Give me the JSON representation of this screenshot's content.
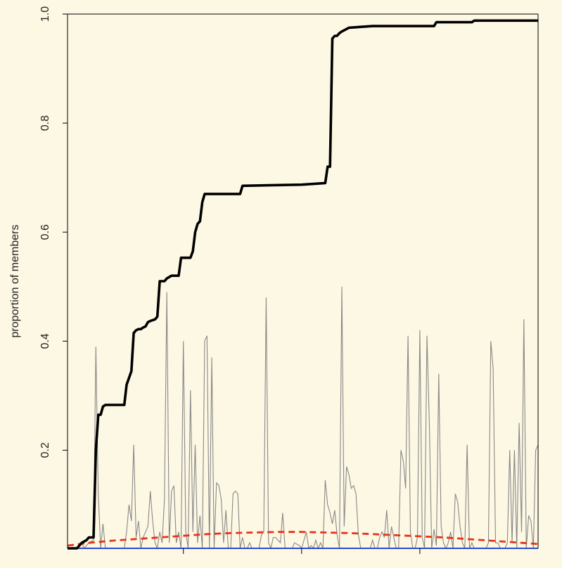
{
  "chart_data": {
    "type": "line",
    "title": "",
    "xlabel": "",
    "ylabel": "proportion of members",
    "xlim": [
      1,
      200
    ],
    "ylim": [
      0.02,
      1.0
    ],
    "yticks": [
      0.2,
      0.4,
      0.6,
      0.8,
      1.0
    ],
    "ytick_labels": [
      "0.2",
      "0.4",
      "0.6",
      "0.8",
      "1.0"
    ],
    "xticks": [
      50,
      100,
      150
    ],
    "grid": false,
    "legend": "none",
    "series": [
      {
        "style": "cumulative",
        "color": "#000000",
        "points": [
          [
            1,
            0.02
          ],
          [
            5,
            0.02
          ],
          [
            7,
            0.03
          ],
          [
            9,
            0.035
          ],
          [
            10,
            0.04
          ],
          [
            12,
            0.04
          ],
          [
            13,
            0.2
          ],
          [
            14,
            0.265
          ],
          [
            15,
            0.265
          ],
          [
            16,
            0.28
          ],
          [
            17,
            0.283
          ],
          [
            18,
            0.283
          ],
          [
            25,
            0.283
          ],
          [
            26,
            0.32
          ],
          [
            28,
            0.345
          ],
          [
            29,
            0.415
          ],
          [
            30,
            0.42
          ],
          [
            31,
            0.422
          ],
          [
            32,
            0.422
          ],
          [
            33,
            0.425
          ],
          [
            34,
            0.427
          ],
          [
            35,
            0.435
          ],
          [
            36,
            0.437
          ],
          [
            38,
            0.44
          ],
          [
            39,
            0.445
          ],
          [
            40,
            0.51
          ],
          [
            42,
            0.51
          ],
          [
            43,
            0.515
          ],
          [
            45,
            0.52
          ],
          [
            48,
            0.52
          ],
          [
            49,
            0.553
          ],
          [
            53,
            0.553
          ],
          [
            54,
            0.565
          ],
          [
            55,
            0.6
          ],
          [
            56,
            0.615
          ],
          [
            57,
            0.62
          ],
          [
            58,
            0.655
          ],
          [
            59,
            0.67
          ],
          [
            74,
            0.67
          ],
          [
            75,
            0.685
          ],
          [
            100,
            0.687
          ],
          [
            110,
            0.69
          ],
          [
            111,
            0.72
          ],
          [
            112,
            0.72
          ],
          [
            113,
            0.955
          ],
          [
            114,
            0.96
          ],
          [
            115,
            0.96
          ],
          [
            116,
            0.965
          ],
          [
            117,
            0.968
          ],
          [
            120,
            0.975
          ],
          [
            130,
            0.978
          ],
          [
            145,
            0.978
          ],
          [
            156,
            0.978
          ],
          [
            157,
            0.985
          ],
          [
            172,
            0.985
          ],
          [
            173,
            0.988
          ],
          [
            200,
            0.988
          ]
        ]
      },
      {
        "style": "per-step",
        "color": "#888888",
        "points": [
          [
            1,
            0.02
          ],
          [
            5,
            0.02
          ],
          [
            7,
            0.03
          ],
          [
            8,
            0.02
          ],
          [
            10,
            0.03
          ],
          [
            12,
            0.035
          ],
          [
            13,
            0.39
          ],
          [
            14,
            0.12
          ],
          [
            15,
            0.02
          ],
          [
            16,
            0.065
          ],
          [
            17,
            0.02
          ],
          [
            18,
            0.02
          ],
          [
            20,
            0.02
          ],
          [
            24,
            0.02
          ],
          [
            25,
            0.02
          ],
          [
            26,
            0.05
          ],
          [
            27,
            0.1
          ],
          [
            28,
            0.07
          ],
          [
            29,
            0.21
          ],
          [
            30,
            0.04
          ],
          [
            31,
            0.07
          ],
          [
            32,
            0.02
          ],
          [
            33,
            0.04
          ],
          [
            34,
            0.05
          ],
          [
            35,
            0.06
          ],
          [
            36,
            0.125
          ],
          [
            37,
            0.07
          ],
          [
            38,
            0.03
          ],
          [
            39,
            0.02
          ],
          [
            40,
            0.05
          ],
          [
            41,
            0.03
          ],
          [
            42,
            0.11
          ],
          [
            43,
            0.49
          ],
          [
            44,
            0.03
          ],
          [
            45,
            0.125
          ],
          [
            46,
            0.135
          ],
          [
            47,
            0.03
          ],
          [
            48,
            0.05
          ],
          [
            49,
            0.02
          ],
          [
            50,
            0.4
          ],
          [
            51,
            0.05
          ],
          [
            52,
            0.02
          ],
          [
            53,
            0.31
          ],
          [
            54,
            0.05
          ],
          [
            55,
            0.21
          ],
          [
            56,
            0.03
          ],
          [
            57,
            0.08
          ],
          [
            58,
            0.02
          ],
          [
            59,
            0.4
          ],
          [
            60,
            0.41
          ],
          [
            61,
            0.02
          ],
          [
            62,
            0.37
          ],
          [
            63,
            0.02
          ],
          [
            64,
            0.14
          ],
          [
            65,
            0.135
          ],
          [
            66,
            0.11
          ],
          [
            67,
            0.03
          ],
          [
            68,
            0.09
          ],
          [
            69,
            0.02
          ],
          [
            70,
            0.02
          ],
          [
            71,
            0.12
          ],
          [
            72,
            0.125
          ],
          [
            73,
            0.12
          ],
          [
            74,
            0.02
          ],
          [
            75,
            0.04
          ],
          [
            76,
            0.02
          ],
          [
            77,
            0.02
          ],
          [
            78,
            0.03
          ],
          [
            79,
            0.02
          ],
          [
            82,
            0.02
          ],
          [
            83,
            0.045
          ],
          [
            84,
            0.05
          ],
          [
            85,
            0.48
          ],
          [
            86,
            0.03
          ],
          [
            87,
            0.02
          ],
          [
            88,
            0.04
          ],
          [
            89,
            0.04
          ],
          [
            90,
            0.035
          ],
          [
            91,
            0.03
          ],
          [
            92,
            0.085
          ],
          [
            93,
            0.02
          ],
          [
            94,
            0.02
          ],
          [
            96,
            0.02
          ],
          [
            97,
            0.03
          ],
          [
            99,
            0.025
          ],
          [
            100,
            0.02
          ],
          [
            101,
            0.035
          ],
          [
            102,
            0.05
          ],
          [
            103,
            0.02
          ],
          [
            104,
            0.025
          ],
          [
            105,
            0.02
          ],
          [
            106,
            0.035
          ],
          [
            107,
            0.02
          ],
          [
            108,
            0.03
          ],
          [
            109,
            0.02
          ],
          [
            110,
            0.145
          ],
          [
            111,
            0.1
          ],
          [
            112,
            0.085
          ],
          [
            113,
            0.065
          ],
          [
            114,
            0.09
          ],
          [
            115,
            0.045
          ],
          [
            116,
            0.02
          ],
          [
            117,
            0.5
          ],
          [
            118,
            0.06
          ],
          [
            119,
            0.17
          ],
          [
            120,
            0.155
          ],
          [
            121,
            0.13
          ],
          [
            122,
            0.135
          ],
          [
            123,
            0.12
          ],
          [
            124,
            0.045
          ],
          [
            125,
            0.02
          ],
          [
            126,
            0.02
          ],
          [
            127,
            0.02
          ],
          [
            128,
            0.02
          ],
          [
            129,
            0.02
          ],
          [
            130,
            0.035
          ],
          [
            131,
            0.02
          ],
          [
            132,
            0.02
          ],
          [
            133,
            0.04
          ],
          [
            134,
            0.05
          ],
          [
            135,
            0.04
          ],
          [
            136,
            0.09
          ],
          [
            137,
            0.02
          ],
          [
            138,
            0.06
          ],
          [
            139,
            0.04
          ],
          [
            140,
            0.02
          ],
          [
            141,
            0.02
          ],
          [
            142,
            0.2
          ],
          [
            143,
            0.18
          ],
          [
            144,
            0.13
          ],
          [
            145,
            0.41
          ],
          [
            146,
            0.05
          ],
          [
            147,
            0.02
          ],
          [
            148,
            0.02
          ],
          [
            149,
            0.04
          ],
          [
            150,
            0.42
          ],
          [
            151,
            0.04
          ],
          [
            152,
            0.02
          ],
          [
            153,
            0.41
          ],
          [
            154,
            0.25
          ],
          [
            155,
            0.02
          ],
          [
            156,
            0.055
          ],
          [
            157,
            0.025
          ],
          [
            158,
            0.34
          ],
          [
            159,
            0.06
          ],
          [
            160,
            0.03
          ],
          [
            161,
            0.02
          ],
          [
            162,
            0.03
          ],
          [
            163,
            0.05
          ],
          [
            164,
            0.02
          ],
          [
            165,
            0.12
          ],
          [
            166,
            0.105
          ],
          [
            167,
            0.06
          ],
          [
            168,
            0.03
          ],
          [
            169,
            0.02
          ],
          [
            170,
            0.21
          ],
          [
            171,
            0.02
          ],
          [
            172,
            0.03
          ],
          [
            173,
            0.02
          ],
          [
            174,
            0.02
          ],
          [
            175,
            0.02
          ],
          [
            176,
            0.02
          ],
          [
            177,
            0.02
          ],
          [
            178,
            0.02
          ],
          [
            179,
            0.03
          ],
          [
            180,
            0.4
          ],
          [
            181,
            0.35
          ],
          [
            182,
            0.03
          ],
          [
            183,
            0.03
          ],
          [
            184,
            0.02
          ],
          [
            185,
            0.02
          ],
          [
            186,
            0.02
          ],
          [
            187,
            0.03
          ],
          [
            188,
            0.2
          ],
          [
            189,
            0.03
          ],
          [
            190,
            0.2
          ],
          [
            191,
            0.02
          ],
          [
            192,
            0.25
          ],
          [
            193,
            0.05
          ],
          [
            194,
            0.44
          ],
          [
            195,
            0.02
          ],
          [
            196,
            0.08
          ],
          [
            197,
            0.07
          ],
          [
            198,
            0.02
          ],
          [
            199,
            0.2
          ],
          [
            200,
            0.21
          ]
        ]
      },
      {
        "style": "expected-dashed",
        "color": "#e8321a",
        "points": [
          [
            1,
            0.025
          ],
          [
            10,
            0.03
          ],
          [
            20,
            0.034
          ],
          [
            30,
            0.037
          ],
          [
            40,
            0.04
          ],
          [
            50,
            0.043
          ],
          [
            60,
            0.046
          ],
          [
            70,
            0.048
          ],
          [
            80,
            0.049
          ],
          [
            90,
            0.05
          ],
          [
            100,
            0.05
          ],
          [
            110,
            0.049
          ],
          [
            120,
            0.048
          ],
          [
            130,
            0.046
          ],
          [
            140,
            0.044
          ],
          [
            150,
            0.042
          ],
          [
            160,
            0.04
          ],
          [
            170,
            0.037
          ],
          [
            180,
            0.034
          ],
          [
            190,
            0.031
          ],
          [
            200,
            0.028
          ]
        ]
      },
      {
        "style": "baseline",
        "color": "#2c48c8",
        "points": [
          [
            1,
            0.02
          ],
          [
            200,
            0.02
          ]
        ]
      }
    ]
  }
}
